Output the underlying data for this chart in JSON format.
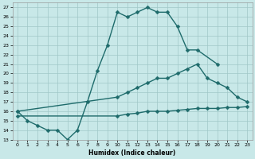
{
  "xlabel": "Humidex (Indice chaleur)",
  "xlim": [
    -0.5,
    23.5
  ],
  "ylim": [
    13,
    27.5
  ],
  "yticks": [
    13,
    14,
    15,
    16,
    17,
    18,
    19,
    20,
    21,
    22,
    23,
    24,
    25,
    26,
    27
  ],
  "xticks": [
    0,
    1,
    2,
    3,
    4,
    5,
    6,
    7,
    8,
    9,
    10,
    11,
    12,
    13,
    14,
    15,
    16,
    17,
    18,
    19,
    20,
    21,
    22,
    23
  ],
  "background_color": "#c8e8e8",
  "line_color": "#1e6b6b",
  "grid_color": "#a0c8c8",
  "line1_x": [
    0,
    1,
    2,
    3,
    4,
    5,
    6,
    7,
    8,
    9,
    10,
    11,
    12,
    13,
    14,
    15,
    16,
    17,
    18,
    20
  ],
  "line1_y": [
    16.0,
    15.0,
    14.5,
    14.0,
    14.0,
    13.0,
    14.0,
    17.0,
    20.3,
    23.0,
    26.5,
    26.0,
    26.5,
    27.0,
    26.5,
    26.5,
    25.0,
    22.5,
    22.5,
    21.0
  ],
  "line2_x": [
    0,
    10,
    11,
    12,
    13,
    14,
    15,
    16,
    17,
    18,
    19,
    20,
    21,
    22,
    23
  ],
  "line2_y": [
    16.0,
    17.5,
    18.0,
    18.5,
    19.0,
    19.5,
    19.5,
    20.0,
    20.5,
    21.0,
    19.5,
    19.0,
    18.5,
    17.5,
    17.0
  ],
  "line3_x": [
    0,
    10,
    11,
    12,
    13,
    14,
    15,
    16,
    17,
    18,
    19,
    20,
    21,
    22,
    23
  ],
  "line3_y": [
    15.5,
    15.5,
    15.7,
    15.8,
    16.0,
    16.0,
    16.0,
    16.1,
    16.2,
    16.3,
    16.3,
    16.3,
    16.4,
    16.4,
    16.5
  ],
  "marker_size": 2.5,
  "line_width": 1.0
}
